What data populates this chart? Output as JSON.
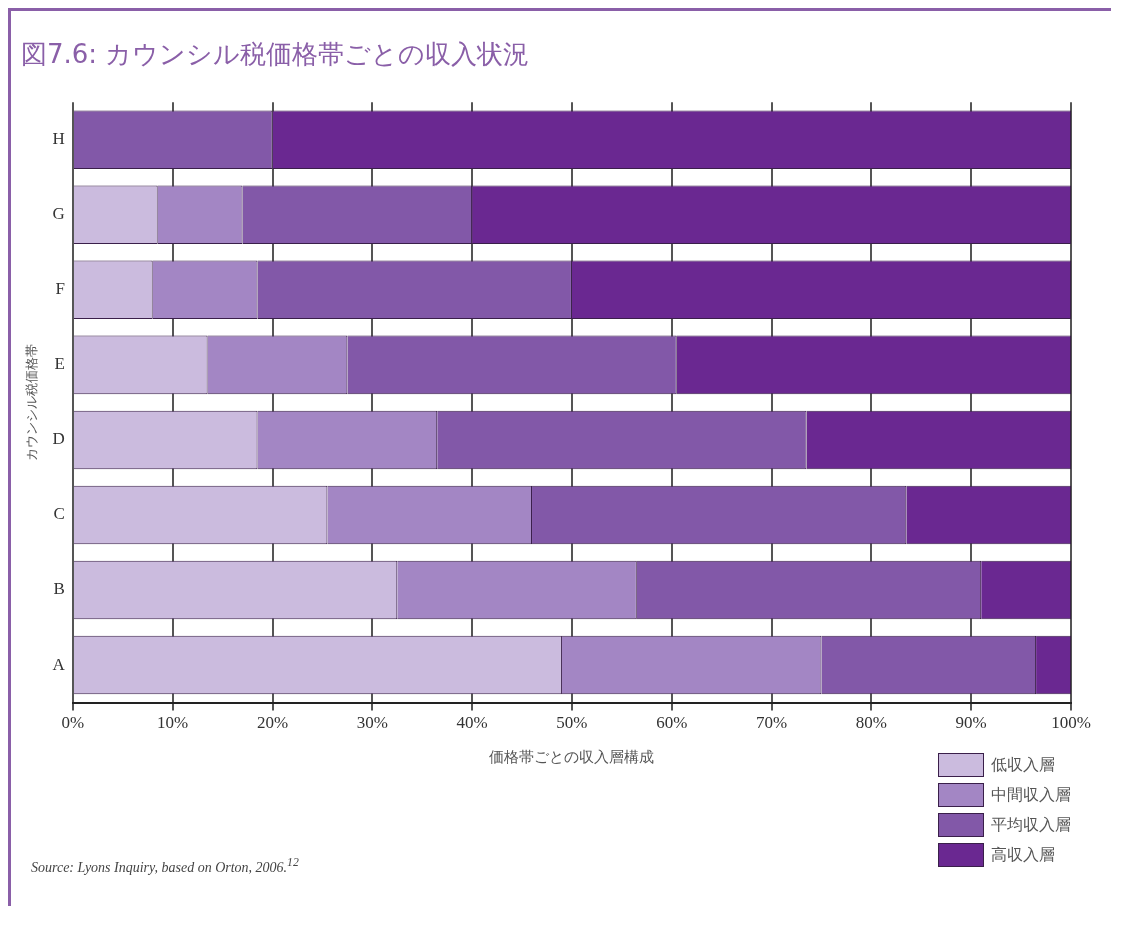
{
  "chart_data": {
    "type": "bar",
    "orientation": "horizontal",
    "stacked": true,
    "title": "図7.6: カウンシル税価格帯ごとの収入状況",
    "xlabel": "価格帯ごとの収入層構成",
    "ylabel": "カウンシル税価格帯",
    "categories": [
      "H",
      "G",
      "F",
      "E",
      "D",
      "C",
      "B",
      "A"
    ],
    "series": [
      {
        "name": "低収入層",
        "color": "#cbbbde",
        "values": [
          0,
          8.5,
          8,
          13.5,
          18.5,
          25.5,
          32.5,
          49
        ]
      },
      {
        "name": "中間収入層",
        "color": "#a386c4",
        "values": [
          0,
          8.5,
          10.5,
          14,
          18,
          20.5,
          24,
          26
        ]
      },
      {
        "name": "平均収入層",
        "color": "#8258a8",
        "values": [
          20,
          23,
          31.5,
          33,
          37,
          37.5,
          34.5,
          21.5
        ]
      },
      {
        "name": "高収入層",
        "color": "#6a2891",
        "values": [
          80,
          60,
          50,
          39.5,
          26.5,
          16.5,
          9,
          3.5
        ]
      }
    ],
    "xlim": [
      0,
      100
    ],
    "xticks": [
      {
        "value": 0,
        "label": "0%"
      },
      {
        "value": 10,
        "label": "10%"
      },
      {
        "value": 20,
        "label": "20%"
      },
      {
        "value": 30,
        "label": "30%"
      },
      {
        "value": 40,
        "label": "40%"
      },
      {
        "value": 50,
        "label": "50%"
      },
      {
        "value": 60,
        "label": "60%"
      },
      {
        "value": 70,
        "label": "70%"
      },
      {
        "value": 80,
        "label": "80%"
      },
      {
        "value": 90,
        "label": "90%"
      },
      {
        "value": 100,
        "label": "100%"
      }
    ],
    "grid": "x",
    "legend": "bottom right",
    "annotations": [
      "Source: Lyons Inquiry, based on Orton, 2006.$^{12}$"
    ]
  }
}
